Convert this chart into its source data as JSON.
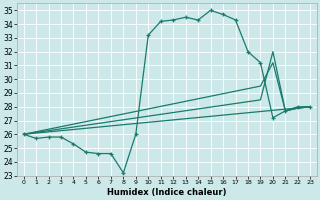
{
  "xlabel": "Humidex (Indice chaleur)",
  "background_color": "#cce8e8",
  "grid_color": "#ffffff",
  "line_color": "#1a7a6e",
  "xlim": [
    -0.5,
    23.5
  ],
  "ylim": [
    23,
    35.5
  ],
  "xticks": [
    0,
    1,
    2,
    3,
    4,
    5,
    6,
    7,
    8,
    9,
    10,
    11,
    12,
    13,
    14,
    15,
    16,
    17,
    18,
    19,
    20,
    21,
    22,
    23
  ],
  "yticks": [
    23,
    24,
    25,
    26,
    27,
    28,
    29,
    30,
    31,
    32,
    33,
    34,
    35
  ],
  "line1_x": [
    0,
    1,
    2,
    3,
    4,
    5,
    6,
    7,
    8,
    9,
    10,
    11,
    12,
    13,
    14,
    15,
    16,
    17,
    18,
    19,
    20,
    21,
    22,
    23
  ],
  "line1_y": [
    26.0,
    25.7,
    25.8,
    25.8,
    25.3,
    24.7,
    24.6,
    24.6,
    23.2,
    26.0,
    33.2,
    34.2,
    34.3,
    34.5,
    34.3,
    35.0,
    34.7,
    34.3,
    32.0,
    31.2,
    27.2,
    27.7,
    28.0,
    28.0
  ],
  "line2_x": [
    0,
    19,
    20,
    21,
    22,
    23
  ],
  "line2_y": [
    26.0,
    29.5,
    31.2,
    27.7,
    27.9,
    28.0
  ],
  "line3_x": [
    0,
    19,
    20,
    21,
    22,
    23
  ],
  "line3_y": [
    26.0,
    28.5,
    32.0,
    27.7,
    27.9,
    28.0
  ],
  "line4_x": [
    0,
    23
  ],
  "line4_y": [
    26.0,
    28.0
  ]
}
